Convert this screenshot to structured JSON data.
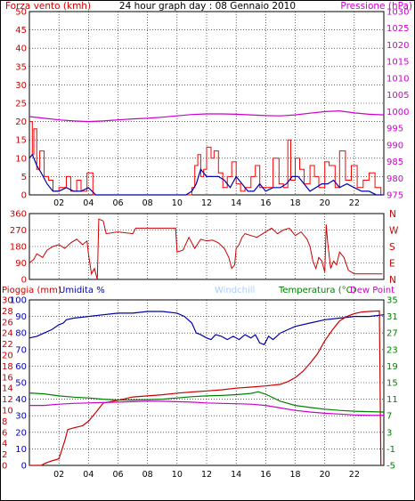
{
  "title": "24 hour graph day : 08 Gennaio 2010",
  "colors": {
    "wind": "#cc0000",
    "gust_line": "#ff0000",
    "wind_avg": "#0000aa",
    "pressure": "#cc00cc",
    "direction": "#cc0000",
    "rain": "#cc0000",
    "humidity": "#0000aa",
    "temperature": "#008000",
    "dewpoint": "#cc00cc",
    "windchill": "#aaccff",
    "grid": "#000000",
    "frame": "#000000"
  },
  "chart_data": [
    {
      "type": "line",
      "title": "24 hour graph day : 08 Gennaio 2010",
      "left_axis_label": "Forza vento (kmh)",
      "right_axis_label": "Pressione (hPa)",
      "left_ticks": [
        "0",
        "5",
        "10",
        "15",
        "20",
        "25",
        "30",
        "35",
        "40",
        "45",
        "50"
      ],
      "right_ticks": [
        "975",
        "980",
        "985",
        "990",
        "995",
        "1000",
        "1005",
        "1010",
        "1015",
        "1020",
        "1025",
        "1030"
      ],
      "x_ticks": [
        "02",
        "04",
        "06",
        "08",
        "10",
        "12",
        "14",
        "16",
        "18",
        "20",
        "22"
      ],
      "ylim_left": [
        0,
        50
      ],
      "ylim_right": [
        975,
        1030
      ],
      "xlim": [
        0,
        24
      ],
      "series": [
        {
          "role": "gust",
          "x": [
            0.0,
            0.2,
            0.3,
            0.5,
            0.7,
            1.0,
            1.3,
            1.6,
            2.0,
            2.5,
            2.8,
            3.2,
            3.5,
            3.9,
            4.3,
            4.6,
            5.0,
            10.0,
            10.6,
            11.0,
            11.2,
            11.4,
            11.6,
            11.8,
            12.0,
            12.3,
            12.5,
            12.8,
            13.1,
            13.4,
            13.7,
            14.0,
            14.3,
            14.6,
            15.0,
            15.3,
            15.6,
            16.0,
            16.5,
            16.9,
            17.2,
            17.5,
            17.7,
            18.0,
            18.3,
            18.6,
            19.0,
            19.3,
            19.6,
            20.0,
            20.3,
            20.7,
            21.0,
            21.4,
            21.8,
            22.2,
            22.6,
            23.0,
            23.4,
            23.8
          ],
          "y": [
            20,
            11,
            18,
            7,
            12,
            5,
            4,
            1,
            2,
            5,
            1,
            4,
            1,
            6,
            0,
            0,
            0,
            0,
            0,
            2,
            8,
            11,
            5,
            7,
            13,
            10,
            12,
            6,
            2,
            5,
            9,
            3,
            1,
            2,
            5,
            8,
            2,
            2,
            10,
            3,
            2,
            15,
            4,
            10,
            7,
            3,
            8,
            5,
            2,
            9,
            8,
            2,
            12,
            4,
            8,
            2,
            4,
            6,
            2,
            0
          ]
        },
        {
          "role": "wind_average",
          "x": [
            0.0,
            0.2,
            0.5,
            0.8,
            1.2,
            1.6,
            2.0,
            2.5,
            3.0,
            3.5,
            4.0,
            4.5,
            5.0,
            10.0,
            10.6,
            11.0,
            11.3,
            11.6,
            12.0,
            12.4,
            12.8,
            13.2,
            13.6,
            14.0,
            14.4,
            14.8,
            15.2,
            15.6,
            16.0,
            16.5,
            17.0,
            17.4,
            17.8,
            18.2,
            18.6,
            19.0,
            19.4,
            19.8,
            20.2,
            20.6,
            21.0,
            21.5,
            22.0,
            22.5,
            23.0,
            23.5,
            23.9
          ],
          "y": [
            10,
            11,
            8,
            6,
            3,
            1,
            1,
            2,
            1,
            1,
            2,
            0,
            0,
            0,
            0,
            1,
            3,
            7,
            5,
            5,
            5,
            4,
            2,
            5,
            3,
            1,
            1,
            3,
            1,
            2,
            2,
            3,
            5,
            5,
            3,
            1,
            2,
            3,
            3,
            4,
            2,
            3,
            2,
            1,
            1,
            0,
            0
          ]
        },
        {
          "role": "pressure",
          "x": [
            0,
            1,
            2,
            3,
            4,
            5,
            6,
            7,
            8,
            9,
            10,
            11,
            12,
            13,
            14,
            15,
            16,
            17,
            18,
            19,
            20,
            21,
            22,
            23,
            24
          ],
          "y": [
            998.5,
            998,
            997.5,
            997.2,
            997,
            997.2,
            997.5,
            997.8,
            998,
            998.3,
            998.7,
            999.1,
            999.3,
            999.3,
            999.2,
            999,
            998.8,
            998.7,
            999,
            999.5,
            1000,
            1000.2,
            999.6,
            999.2,
            999
          ]
        }
      ]
    },
    {
      "type": "line",
      "left_ticks": [
        "0",
        "90",
        "180",
        "270",
        "360"
      ],
      "right_ticks": [
        "N",
        "E",
        "S",
        "W",
        "N"
      ],
      "xlim": [
        0,
        24
      ],
      "ylim": [
        0,
        360
      ],
      "series": [
        {
          "role": "wind_direction",
          "x": [
            0.0,
            0.3,
            0.5,
            0.9,
            1.2,
            1.6,
            2.0,
            2.4,
            2.8,
            3.2,
            3.6,
            3.9,
            4.0,
            4.2,
            4.4,
            4.6,
            4.7,
            5.0,
            5.2,
            6.0,
            7.0,
            7.2,
            8.0,
            9.0,
            9.9,
            10.0,
            10.4,
            10.8,
            11.2,
            11.6,
            12.0,
            12.4,
            12.8,
            13.2,
            13.5,
            13.7,
            13.9,
            14.0,
            14.2,
            14.4,
            14.6,
            15.0,
            15.4,
            15.6,
            16.0,
            16.4,
            16.8,
            17.2,
            17.6,
            18.0,
            18.4,
            18.8,
            19.0,
            19.2,
            19.4,
            19.6,
            19.8,
            20.0,
            20.1,
            20.2,
            20.4,
            20.6,
            20.8,
            21.0,
            21.3,
            21.6,
            22.0,
            23.0,
            23.9
          ],
          "y": [
            90,
            110,
            140,
            120,
            160,
            180,
            190,
            170,
            200,
            220,
            190,
            210,
            140,
            30,
            60,
            0,
            330,
            320,
            250,
            260,
            250,
            280,
            280,
            280,
            280,
            150,
            160,
            230,
            170,
            220,
            210,
            215,
            200,
            170,
            120,
            60,
            80,
            170,
            190,
            230,
            250,
            240,
            230,
            240,
            260,
            280,
            250,
            270,
            280,
            240,
            260,
            220,
            180,
            100,
            60,
            120,
            100,
            40,
            300,
            200,
            60,
            100,
            80,
            150,
            120,
            50,
            30,
            30,
            30
          ]
        }
      ]
    },
    {
      "type": "line",
      "left_axis_label_1": "Pioggia (mm)",
      "left_axis_label_2": "Umidita %",
      "right_axis_label_windchill": "Windchill",
      "right_axis_label_temp": "Temperatura (°C)",
      "right_axis_label_dew": "Dew Point",
      "left_ticks_rain": [
        "0",
        "2",
        "4",
        "6",
        "8",
        "10",
        "12",
        "14",
        "16",
        "18",
        "20",
        "22",
        "24",
        "26",
        "28",
        "30"
      ],
      "left_ticks_hum": [
        "0",
        "10",
        "20",
        "30",
        "40",
        "50",
        "60",
        "70",
        "80",
        "90",
        "100"
      ],
      "right_ticks": [
        "-5",
        "-1",
        "3",
        "7",
        "11",
        "15",
        "19",
        "23",
        "27",
        "31",
        "35"
      ],
      "x_ticks": [
        "02",
        "04",
        "06",
        "08",
        "10",
        "12",
        "14",
        "16",
        "18",
        "20",
        "22"
      ],
      "xlim": [
        0,
        24
      ],
      "ylim_rain": [
        0,
        30
      ],
      "ylim_humidity": [
        0,
        100
      ],
      "ylim_temperature": [
        -5,
        35
      ],
      "series": [
        {
          "role": "humidity",
          "x": [
            0.0,
            0.5,
            1.0,
            1.5,
            2.0,
            2.3,
            2.5,
            3.0,
            4.0,
            5.0,
            6.0,
            7.0,
            8.0,
            9.0,
            10.0,
            10.5,
            11.0,
            11.3,
            11.6,
            12.0,
            12.3,
            12.6,
            13.0,
            13.4,
            13.8,
            14.2,
            14.6,
            15.0,
            15.3,
            15.6,
            15.9,
            16.2,
            16.5,
            17.0,
            17.5,
            18.0,
            19.0,
            20.0,
            21.0,
            22.0,
            23.0,
            24.0
          ],
          "y": [
            77,
            78,
            80,
            82,
            85,
            86,
            88,
            89,
            90,
            91,
            92,
            92,
            93,
            93,
            92,
            90,
            86,
            80,
            79,
            77,
            76,
            79,
            78,
            76,
            78,
            76,
            79,
            77,
            79,
            74,
            73,
            78,
            76,
            80,
            82,
            84,
            86,
            88,
            89,
            90,
            90,
            91
          ]
        },
        {
          "role": "rain",
          "x": [
            0.0,
            0.8,
            1.0,
            1.5,
            2.0,
            2.4,
            2.6,
            3.0,
            3.6,
            4.0,
            4.5,
            5.0,
            6.0,
            7.0,
            8.0,
            9.0,
            10.0,
            11.0,
            12.0,
            13.0,
            14.0,
            15.0,
            16.0,
            17.0,
            17.5,
            18.0,
            18.5,
            19.0,
            19.5,
            20.0,
            20.5,
            21.0,
            21.5,
            22.0,
            22.5,
            23.0,
            23.7,
            23.8
          ],
          "y": [
            0,
            0,
            0.3,
            0.8,
            1.2,
            4.5,
            6.5,
            6.8,
            7.2,
            8.0,
            9.6,
            11.3,
            11.8,
            12.4,
            12.6,
            12.8,
            13.1,
            13.3,
            13.5,
            13.7,
            14.0,
            14.2,
            14.4,
            14.7,
            15.2,
            15.9,
            17.0,
            18.5,
            20.2,
            22.6,
            24.5,
            26.2,
            27.0,
            27.5,
            27.8,
            27.9,
            28,
            0
          ]
        },
        {
          "role": "temperature",
          "x": [
            0,
            1,
            2,
            3,
            4,
            5,
            6,
            7,
            8,
            9,
            10,
            11,
            12,
            13,
            14,
            15,
            15.5,
            16,
            17,
            18,
            19,
            20,
            21,
            22,
            23,
            24
          ],
          "y": [
            12.5,
            12.3,
            11.8,
            11.5,
            11.3,
            11,
            10.8,
            10.8,
            10.9,
            11,
            11.3,
            11.6,
            11.8,
            11.9,
            12.1,
            12.4,
            12.8,
            12.2,
            10.5,
            9.5,
            9,
            8.6,
            8.3,
            8.1,
            8,
            7.9
          ]
        },
        {
          "role": "dewpoint",
          "x": [
            0,
            1,
            2,
            3,
            4,
            5,
            6,
            7,
            8,
            9,
            10,
            11,
            12,
            13,
            14,
            15,
            16,
            17,
            18,
            19,
            20,
            21,
            22,
            23,
            24
          ],
          "y": [
            9.5,
            9.5,
            9.8,
            10,
            10.1,
            10.2,
            10.3,
            10.4,
            10.5,
            10.5,
            10.4,
            10.3,
            10.1,
            10,
            9.9,
            9.8,
            9.5,
            8.9,
            8.3,
            7.9,
            7.6,
            7.4,
            7.2,
            7.1,
            7.1
          ]
        }
      ]
    }
  ]
}
